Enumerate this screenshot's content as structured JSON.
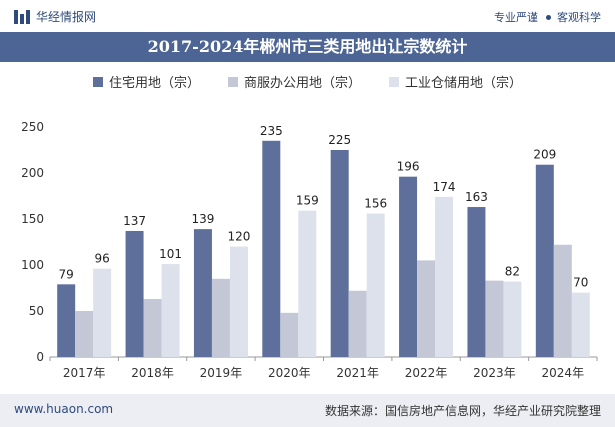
{
  "header": {
    "brand": "华经情报网",
    "tagline_left": "专业严谨",
    "tagline_right": "客观科学"
  },
  "title": "2017-2024年郴州市三类用地出让宗数统计",
  "footer": {
    "url": "www.huaon.com",
    "source": "数据来源：国信房地产信息网，华经产业研究院整理"
  },
  "colors": {
    "series1": "#5d6f9a",
    "series2": "#c3c7d6",
    "series3": "#dde1ec",
    "title_bg": "#4d6594"
  },
  "chart_data": {
    "type": "bar",
    "title": "2017-2024年郴州市三类用地出让宗数统计",
    "xlabel": "",
    "ylabel": "",
    "ylim": [
      0,
      250
    ],
    "yticks": [
      0,
      50,
      100,
      150,
      200,
      250
    ],
    "categories": [
      "2017年",
      "2018年",
      "2019年",
      "2020年",
      "2021年",
      "2022年",
      "2023年",
      "2024年"
    ],
    "series": [
      {
        "name": "住宅用地（宗）",
        "values": [
          79,
          137,
          139,
          235,
          225,
          196,
          163,
          209
        ],
        "labeled": true
      },
      {
        "name": "商服办公用地（宗）",
        "values": [
          50,
          63,
          85,
          48,
          72,
          105,
          83,
          122
        ],
        "labeled": false
      },
      {
        "name": "工业仓储用地（宗）",
        "values": [
          96,
          101,
          120,
          159,
          156,
          174,
          82,
          70
        ],
        "labeled": true
      }
    ],
    "legend_position": "top-center"
  }
}
